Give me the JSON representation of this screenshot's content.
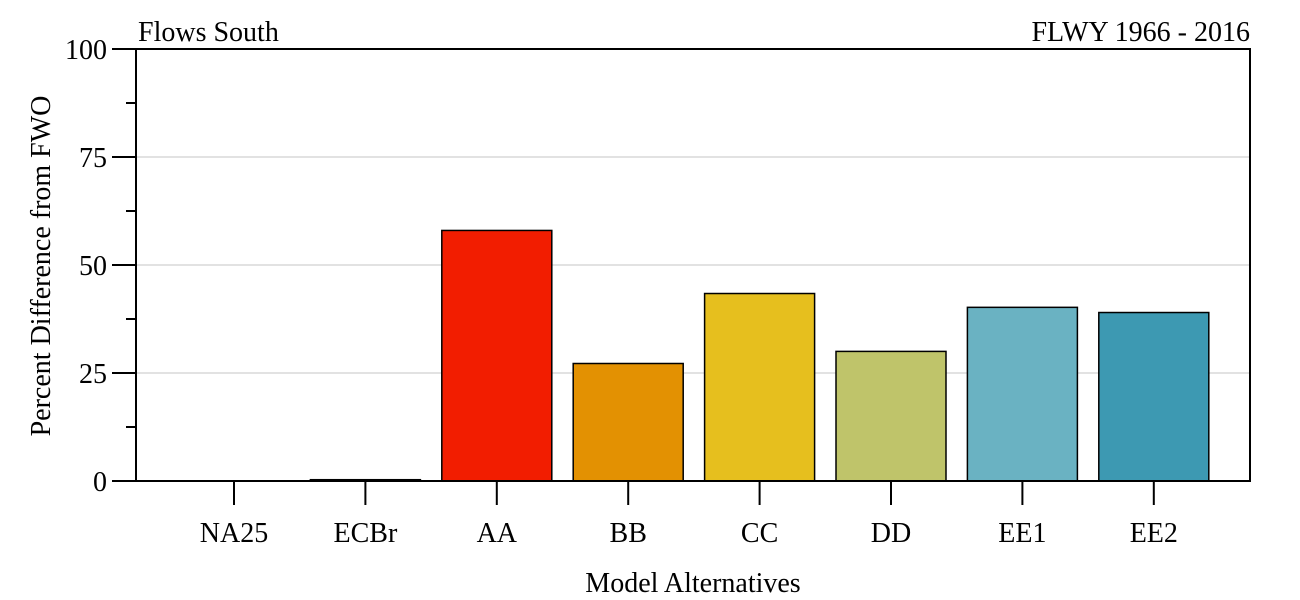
{
  "chart_data": {
    "type": "bar",
    "title_left": "Flows South",
    "title_right": "FLWY 1966 - 2016",
    "xlabel": "Model Alternatives",
    "ylabel": "Percent Difference from FWO",
    "categories": [
      "NA25",
      "ECBr",
      "AA",
      "BB",
      "CC",
      "DD",
      "EE1",
      "EE2"
    ],
    "values": [
      0,
      0.3,
      58,
      27.2,
      43.4,
      30,
      40.2,
      39
    ],
    "colors": [
      "#ffffff",
      "#ffffff",
      "#f21d00",
      "#e39102",
      "#e6bf1e",
      "#bfc46a",
      "#6ab2c2",
      "#3d99b2"
    ],
    "ylim": [
      0,
      100
    ],
    "yticks": [
      0,
      25,
      50,
      75,
      100
    ],
    "ytick_labels": [
      "0",
      "25",
      "50",
      "75",
      "100"
    ],
    "grid": true,
    "legend": "none"
  }
}
